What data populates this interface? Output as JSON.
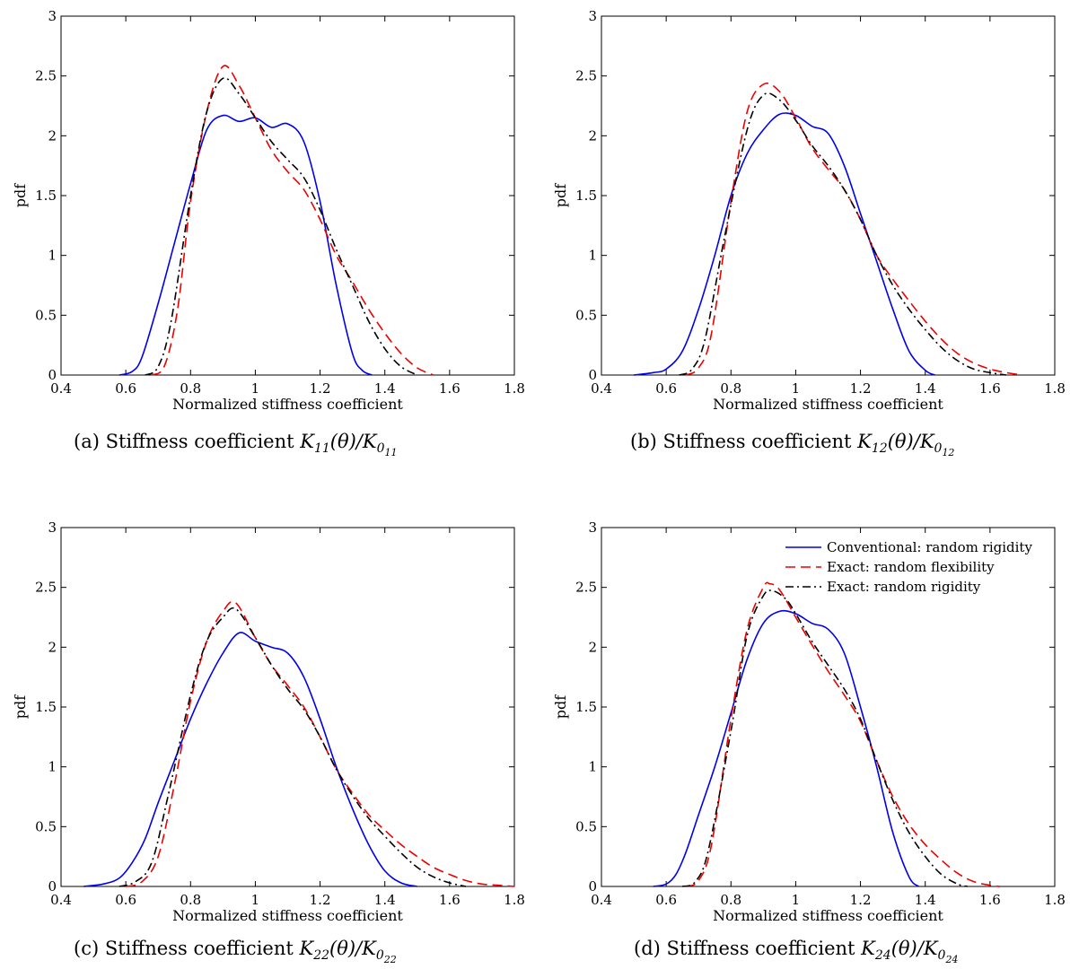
{
  "colors": {
    "conventional": "#0000ee",
    "exact_flexibility": "#ee0000",
    "exact_rigidity": "#000000"
  },
  "legend_entries": [
    "Conventional: random rigidity",
    "Exact: random flexibility",
    "Exact: random rigidity"
  ],
  "captions": [
    {
      "prefix": "(a) Stiffness coefficient ",
      "num_main": "K",
      "num_sub": "11",
      "den_main": "K",
      "den_sub": "0",
      "den_subsub": "11"
    },
    {
      "prefix": "(b) Stiffness coefficient ",
      "num_main": "K",
      "num_sub": "12",
      "den_main": "K",
      "den_sub": "0",
      "den_subsub": "12"
    },
    {
      "prefix": "(c) Stiffness coefficient ",
      "num_main": "K",
      "num_sub": "22",
      "den_main": "K",
      "den_sub": "0",
      "den_subsub": "22"
    },
    {
      "prefix": "(d) Stiffness coefficient ",
      "num_main": "K",
      "num_sub": "24",
      "den_main": "K",
      "den_sub": "0",
      "den_subsub": "24"
    }
  ],
  "theta_text": "(θ)/",
  "chart_data": [
    {
      "type": "line",
      "xlabel": "Normalized stiffness coefficient",
      "ylabel": "pdf",
      "xlim": [
        0.4,
        1.8
      ],
      "ylim": [
        0,
        3
      ],
      "xticks": [
        "0.4",
        "0.6",
        "0.8",
        "1",
        "1.2",
        "1.4",
        "1.6",
        "1.8"
      ],
      "yticks": [
        "0",
        "0.5",
        "1",
        "1.5",
        "2",
        "2.5",
        "3"
      ],
      "legend": false,
      "series": [
        {
          "key": "conventional",
          "x": [
            0.58,
            0.62,
            0.65,
            0.7,
            0.75,
            0.8,
            0.85,
            0.9,
            0.95,
            1.0,
            1.05,
            1.1,
            1.15,
            1.2,
            1.25,
            1.3,
            1.33,
            1.36
          ],
          "y": [
            0,
            0.03,
            0.15,
            0.6,
            1.1,
            1.6,
            2.05,
            2.17,
            2.12,
            2.15,
            2.07,
            2.1,
            1.95,
            1.45,
            0.75,
            0.18,
            0.04,
            0
          ]
        },
        {
          "key": "exact_flexibility",
          "x": [
            0.68,
            0.72,
            0.76,
            0.8,
            0.85,
            0.9,
            0.95,
            1.0,
            1.05,
            1.1,
            1.15,
            1.2,
            1.25,
            1.3,
            1.35,
            1.4,
            1.45,
            1.5,
            1.55
          ],
          "y": [
            0,
            0.08,
            0.55,
            1.45,
            2.2,
            2.58,
            2.42,
            2.15,
            1.88,
            1.7,
            1.55,
            1.3,
            1.0,
            0.78,
            0.55,
            0.35,
            0.18,
            0.06,
            0
          ]
        },
        {
          "key": "exact_rigidity",
          "x": [
            0.66,
            0.7,
            0.74,
            0.8,
            0.85,
            0.9,
            0.95,
            1.0,
            1.05,
            1.1,
            1.15,
            1.2,
            1.25,
            1.3,
            1.35,
            1.4,
            1.45,
            1.5
          ],
          "y": [
            0,
            0.07,
            0.45,
            1.5,
            2.2,
            2.48,
            2.35,
            2.15,
            1.95,
            1.8,
            1.65,
            1.38,
            1.05,
            0.75,
            0.45,
            0.22,
            0.07,
            0
          ]
        }
      ]
    },
    {
      "type": "line",
      "xlabel": "Normalized stiffness coefficient",
      "ylabel": "pdf",
      "xlim": [
        0.4,
        1.8
      ],
      "ylim": [
        0,
        3
      ],
      "xticks": [
        "0.4",
        "0.6",
        "0.8",
        "1",
        "1.2",
        "1.4",
        "1.6",
        "1.8"
      ],
      "yticks": [
        "0",
        "0.5",
        "1",
        "1.5",
        "2",
        "2.5",
        "3"
      ],
      "legend": false,
      "series": [
        {
          "key": "conventional",
          "x": [
            0.5,
            0.56,
            0.6,
            0.65,
            0.7,
            0.75,
            0.8,
            0.85,
            0.9,
            0.95,
            1.0,
            1.05,
            1.1,
            1.15,
            1.2,
            1.25,
            1.3,
            1.35,
            1.4,
            1.43
          ],
          "y": [
            0,
            0.02,
            0.05,
            0.2,
            0.55,
            1.0,
            1.5,
            1.85,
            2.05,
            2.18,
            2.17,
            2.08,
            2.02,
            1.75,
            1.35,
            0.95,
            0.55,
            0.2,
            0.04,
            0
          ]
        },
        {
          "key": "exact_flexibility",
          "x": [
            0.66,
            0.7,
            0.74,
            0.8,
            0.85,
            0.9,
            0.95,
            1.0,
            1.05,
            1.1,
            1.15,
            1.2,
            1.25,
            1.3,
            1.35,
            1.4,
            1.45,
            1.5,
            1.55,
            1.6,
            1.65,
            1.7
          ],
          "y": [
            0,
            0.06,
            0.35,
            1.45,
            2.2,
            2.43,
            2.37,
            2.15,
            1.9,
            1.72,
            1.55,
            1.3,
            1.0,
            0.8,
            0.62,
            0.45,
            0.3,
            0.18,
            0.1,
            0.05,
            0.02,
            0
          ]
        },
        {
          "key": "exact_rigidity",
          "x": [
            0.64,
            0.68,
            0.72,
            0.78,
            0.85,
            0.9,
            0.95,
            1.0,
            1.05,
            1.1,
            1.15,
            1.2,
            1.25,
            1.3,
            1.35,
            1.4,
            1.45,
            1.5,
            1.55,
            1.6,
            1.65
          ],
          "y": [
            0,
            0.05,
            0.3,
            1.15,
            2.05,
            2.34,
            2.3,
            2.13,
            1.92,
            1.75,
            1.55,
            1.3,
            1.0,
            0.75,
            0.55,
            0.38,
            0.23,
            0.12,
            0.05,
            0.02,
            0
          ]
        }
      ]
    },
    {
      "type": "line",
      "xlabel": "Normalized stiffness coefficient",
      "ylabel": "pdf",
      "xlim": [
        0.4,
        1.8
      ],
      "ylim": [
        0,
        3
      ],
      "xticks": [
        "0.4",
        "0.6",
        "0.8",
        "1",
        "1.2",
        "1.4",
        "1.6",
        "1.8"
      ],
      "yticks": [
        "0",
        "0.5",
        "1",
        "1.5",
        "2",
        "2.5",
        "3"
      ],
      "legend": false,
      "series": [
        {
          "key": "conventional",
          "x": [
            0.47,
            0.53,
            0.58,
            0.62,
            0.66,
            0.7,
            0.75,
            0.8,
            0.85,
            0.9,
            0.95,
            1.0,
            1.05,
            1.1,
            1.15,
            1.2,
            1.25,
            1.3,
            1.35,
            1.4,
            1.45,
            1.5
          ],
          "y": [
            0,
            0.02,
            0.07,
            0.2,
            0.4,
            0.7,
            1.05,
            1.4,
            1.7,
            1.95,
            2.12,
            2.05,
            2.0,
            1.95,
            1.75,
            1.4,
            1.0,
            0.65,
            0.35,
            0.13,
            0.03,
            0
          ]
        },
        {
          "key": "exact_flexibility",
          "x": [
            0.6,
            0.65,
            0.7,
            0.75,
            0.8,
            0.85,
            0.9,
            0.94,
            1.0,
            1.05,
            1.1,
            1.15,
            1.2,
            1.25,
            1.3,
            1.35,
            1.4,
            1.45,
            1.5,
            1.55,
            1.6,
            1.65,
            1.7,
            1.75,
            1.8
          ],
          "y": [
            0,
            0.04,
            0.25,
            0.85,
            1.55,
            2.05,
            2.3,
            2.37,
            2.08,
            1.85,
            1.68,
            1.5,
            1.25,
            0.98,
            0.78,
            0.6,
            0.47,
            0.35,
            0.25,
            0.16,
            0.1,
            0.05,
            0.02,
            0.01,
            0
          ]
        },
        {
          "key": "exact_rigidity",
          "x": [
            0.58,
            0.63,
            0.68,
            0.73,
            0.8,
            0.85,
            0.9,
            0.94,
            1.0,
            1.05,
            1.1,
            1.15,
            1.2,
            1.25,
            1.3,
            1.35,
            1.4,
            1.45,
            1.5,
            1.55,
            1.6,
            1.65
          ],
          "y": [
            0,
            0.04,
            0.2,
            0.75,
            1.6,
            2.05,
            2.25,
            2.32,
            2.08,
            1.85,
            1.65,
            1.48,
            1.25,
            0.98,
            0.76,
            0.57,
            0.42,
            0.28,
            0.16,
            0.08,
            0.03,
            0
          ]
        }
      ]
    },
    {
      "type": "line",
      "xlabel": "Normalized stiffness coefficient",
      "ylabel": "pdf",
      "xlim": [
        0.4,
        1.8
      ],
      "ylim": [
        0,
        3
      ],
      "xticks": [
        "0.4",
        "0.6",
        "0.8",
        "1",
        "1.2",
        "1.4",
        "1.6",
        "1.8"
      ],
      "yticks": [
        "0",
        "0.5",
        "1",
        "1.5",
        "2",
        "2.5",
        "3"
      ],
      "legend": true,
      "legend_position": "top-right",
      "series": [
        {
          "key": "conventional",
          "x": [
            0.56,
            0.6,
            0.63,
            0.66,
            0.7,
            0.75,
            0.8,
            0.85,
            0.9,
            0.95,
            1.0,
            1.05,
            1.1,
            1.15,
            1.2,
            1.25,
            1.3,
            1.35,
            1.38
          ],
          "y": [
            0,
            0.02,
            0.1,
            0.28,
            0.6,
            1.0,
            1.45,
            1.9,
            2.2,
            2.3,
            2.28,
            2.2,
            2.15,
            1.95,
            1.5,
            1.0,
            0.45,
            0.08,
            0
          ]
        },
        {
          "key": "exact_flexibility",
          "x": [
            0.66,
            0.7,
            0.74,
            0.8,
            0.85,
            0.9,
            0.92,
            0.95,
            1.0,
            1.05,
            1.1,
            1.15,
            1.2,
            1.25,
            1.3,
            1.35,
            1.4,
            1.45,
            1.5,
            1.55,
            1.6,
            1.63
          ],
          "y": [
            0,
            0.05,
            0.35,
            1.4,
            2.15,
            2.5,
            2.53,
            2.48,
            2.25,
            2.02,
            1.8,
            1.6,
            1.38,
            1.05,
            0.75,
            0.52,
            0.35,
            0.22,
            0.11,
            0.04,
            0.01,
            0
          ]
        },
        {
          "key": "exact_rigidity",
          "x": [
            0.65,
            0.69,
            0.73,
            0.8,
            0.85,
            0.9,
            0.93,
            0.97,
            1.0,
            1.05,
            1.1,
            1.15,
            1.2,
            1.25,
            1.3,
            1.35,
            1.4,
            1.45,
            1.5,
            1.53
          ],
          "y": [
            0,
            0.04,
            0.3,
            1.3,
            2.1,
            2.43,
            2.47,
            2.4,
            2.28,
            2.05,
            1.85,
            1.65,
            1.4,
            1.05,
            0.72,
            0.45,
            0.25,
            0.1,
            0.02,
            0
          ]
        }
      ]
    }
  ]
}
